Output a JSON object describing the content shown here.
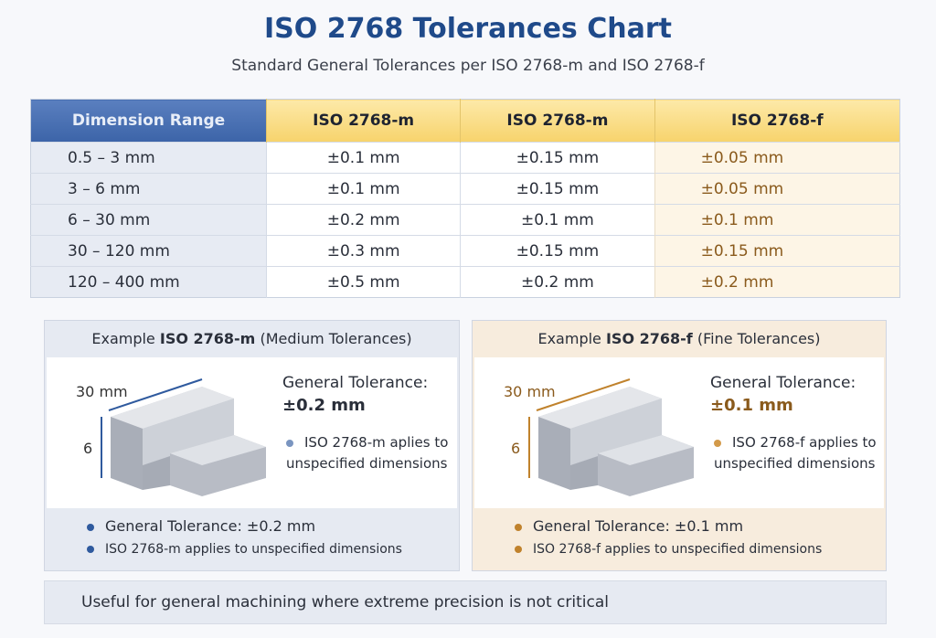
{
  "title": "ISO 2768 Tolerances Chart",
  "subtitle": "Standard General Tolerances per ISO 2768-m and ISO 2768-f",
  "table": {
    "headers": [
      "Dimension Range",
      "ISO 2768-m",
      "ISO 2768-m",
      "ISO 2768-f"
    ],
    "rows": [
      [
        "0.5 – 3 mm",
        "±0.1 mm",
        "±0.15 mm",
        "±0.05 mm"
      ],
      [
        "3 – 6 mm",
        "±0.1 mm",
        "±0.15 mm",
        "±0.05 mm"
      ],
      [
        "6 – 30 mm",
        "±0.2 mm",
        "±0.1 mm",
        "±0.1 mm"
      ],
      [
        "30 – 120 mm",
        "±0.3 mm",
        "±0.15 mm",
        "±0.15 mm"
      ],
      [
        "120 – 400 mm",
        "±0.5 mm",
        "±0.2 mm",
        "±0.2 mm"
      ]
    ]
  },
  "panels": {
    "medium": {
      "prefix": "Example ",
      "bold": "ISO 2768-m",
      "suffix": " (Medium Tolerances)",
      "length_label": "30 mm",
      "height_label": "6",
      "gt_label": "General Tolerance:",
      "gt_value": "±0.2 mm",
      "note": "ISO 2768-m aplies to unspecified dimensions",
      "bullets": [
        "General Tolerance:  ±0.2 mm",
        "ISO 2768-m applies to unspecified dimensions"
      ],
      "accent": "#2f5a9e"
    },
    "fine": {
      "prefix": "Example ",
      "bold": "ISO 2768-f",
      "suffix": " (Fine Tolerances)",
      "length_label": "30 mm",
      "height_label": "6",
      "gt_label": "General Tolerance:",
      "gt_value": "±0.1 mm",
      "note": "ISO 2768-f applies to unspecified dimensions",
      "bullets": [
        "General Tolerance:  ±0.1 mm",
        "ISO 2768-f applies to unspecified dimensions"
      ],
      "accent": "#c0822c"
    }
  },
  "footer": "Useful for general machining where extreme precision is not critical"
}
